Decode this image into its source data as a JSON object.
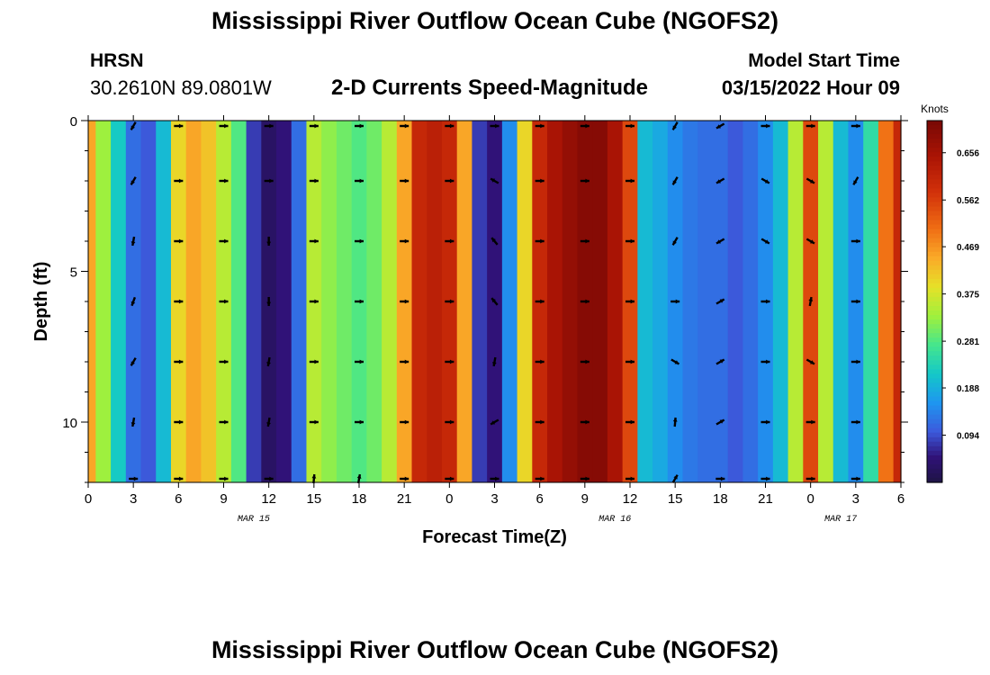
{
  "header": {
    "title_top": "Mississippi River Outflow Ocean Cube (NGOFS2)",
    "title_bottom": "Mississippi River Outflow Ocean Cube (NGOFS2)",
    "station": "HRSN",
    "coordinates": "30.2610N  89.0801W",
    "subtitle": "2-D Currents Speed-Magnitude",
    "model_start_label": "Model Start Time",
    "model_start_value": "03/15/2022 Hour 09"
  },
  "chart_data": {
    "type": "heatmap",
    "title": "2-D Currents Speed-Magnitude",
    "xlabel": "Forecast Time(Z)",
    "ylabel": "Depth (ft)",
    "xlim": [
      0,
      54
    ],
    "ylim": [
      12,
      0
    ],
    "x_ticks": [
      0,
      3,
      6,
      9,
      12,
      15,
      18,
      21,
      24,
      27,
      30,
      33,
      36,
      39,
      42,
      45,
      48,
      51,
      54
    ],
    "x_tick_labels": [
      "0",
      "3",
      "6",
      "9",
      "12",
      "15",
      "18",
      "21",
      "0",
      "3",
      "6",
      "9",
      "12",
      "15",
      "18",
      "21",
      "0",
      "3",
      "6"
    ],
    "date_labels": [
      {
        "hour": 11,
        "text": "MAR 15"
      },
      {
        "hour": 35,
        "text": "MAR 16"
      },
      {
        "hour": 50,
        "text": "MAR 17"
      }
    ],
    "y_ticks": [
      0,
      5,
      10
    ],
    "y_tick_labels": [
      "0",
      "5",
      "10"
    ],
    "colorbar": {
      "title": "Knots",
      "min": 0,
      "max": 0.72,
      "tick_values": [
        0.656,
        0.562,
        0.469,
        0.375,
        0.281,
        0.188,
        0.094
      ],
      "tick_labels": [
        "0.656",
        "0.562",
        "0.469",
        "0.375",
        "0.281",
        "0.188",
        "0.094"
      ]
    },
    "time_hours": [
      0,
      1,
      2,
      3,
      4,
      5,
      6,
      7,
      8,
      9,
      10,
      11,
      12,
      13,
      14,
      15,
      16,
      17,
      18,
      19,
      20,
      21,
      22,
      23,
      24,
      25,
      26,
      27,
      28,
      29,
      30,
      31,
      32,
      33,
      34,
      35,
      36,
      37,
      38,
      39,
      40,
      41,
      42,
      43,
      44,
      45,
      46,
      47,
      48,
      49,
      50,
      51,
      52,
      53,
      54
    ],
    "speed_profile_knots": [
      0.45,
      0.33,
      0.22,
      0.12,
      0.1,
      0.2,
      0.4,
      0.45,
      0.42,
      0.35,
      0.28,
      0.08,
      0.03,
      0.05,
      0.12,
      0.35,
      0.32,
      0.3,
      0.28,
      0.3,
      0.35,
      0.45,
      0.6,
      0.62,
      0.6,
      0.45,
      0.08,
      0.05,
      0.15,
      0.4,
      0.6,
      0.65,
      0.68,
      0.7,
      0.7,
      0.65,
      0.55,
      0.2,
      0.18,
      0.15,
      0.13,
      0.12,
      0.12,
      0.1,
      0.12,
      0.15,
      0.2,
      0.35,
      0.55,
      0.35,
      0.2,
      0.15,
      0.25,
      0.5,
      0.6
    ],
    "vector_depths_ft": [
      0,
      2,
      4,
      6,
      8,
      10,
      12
    ],
    "vector_hours": [
      3,
      6,
      9,
      12,
      15,
      18,
      21,
      24,
      27,
      30,
      33,
      36,
      39,
      42,
      45,
      48,
      51
    ],
    "vector_directions_deg": [
      [
        120,
        0,
        0,
        0,
        0,
        0,
        0,
        0,
        0,
        0,
        0,
        0,
        120,
        150,
        0,
        0,
        0
      ],
      [
        120,
        0,
        0,
        0,
        0,
        0,
        0,
        0,
        210,
        0,
        0,
        0,
        120,
        150,
        30,
        30,
        120
      ],
      [
        100,
        0,
        0,
        90,
        0,
        0,
        0,
        0,
        230,
        0,
        0,
        0,
        120,
        150,
        30,
        30,
        0
      ],
      [
        110,
        0,
        0,
        90,
        0,
        0,
        0,
        0,
        230,
        0,
        0,
        0,
        0,
        330,
        0,
        280,
        0
      ],
      [
        120,
        0,
        0,
        100,
        0,
        0,
        0,
        0,
        100,
        0,
        0,
        0,
        30,
        330,
        0,
        30,
        0
      ],
      [
        100,
        0,
        0,
        100,
        0,
        0,
        0,
        0,
        150,
        0,
        0,
        0,
        275,
        330,
        0,
        0,
        0
      ],
      [
        0,
        0,
        0,
        0,
        275,
        280,
        0,
        0,
        0,
        0,
        0,
        0,
        300,
        0,
        0,
        0,
        0
      ]
    ]
  }
}
